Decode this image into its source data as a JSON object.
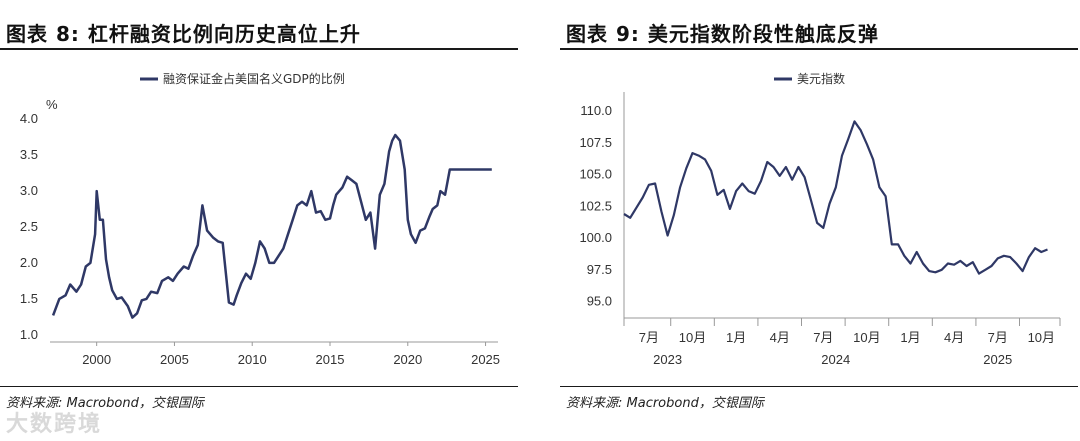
{
  "left": {
    "title": "图表 8: 杠杆融资比例向历史高位上升",
    "source": "资料来源: Macrobond，交银国际",
    "watermark": "大数跨境",
    "chart_data": {
      "type": "line",
      "title": "",
      "legend": [
        "融资保证金占美国名义GDP的比例"
      ],
      "ylabel": "%",
      "xlabel": "",
      "xlim": [
        1997,
        2025.8
      ],
      "ylim": [
        0.9,
        4.1
      ],
      "yticks": [
        "1.0",
        "1.5",
        "2.0",
        "2.5",
        "3.0",
        "3.5",
        "4.0"
      ],
      "xticks": [
        "2000",
        "2005",
        "2010",
        "2015",
        "2020",
        "2025"
      ],
      "color": "#2f3866",
      "series": [
        {
          "name": "融资保证金占美国名义GDP的比例",
          "x": [
            1997.2,
            1997.6,
            1998.0,
            1998.3,
            1998.7,
            1999.0,
            1999.3,
            1999.6,
            1999.9,
            2000.0,
            2000.2,
            2000.4,
            2000.6,
            2000.8,
            2001.0,
            2001.3,
            2001.6,
            2002.0,
            2002.3,
            2002.6,
            2002.9,
            2003.2,
            2003.5,
            2003.9,
            2004.2,
            2004.6,
            2004.9,
            2005.2,
            2005.6,
            2005.9,
            2006.2,
            2006.5,
            2006.8,
            2007.1,
            2007.3,
            2007.5,
            2007.8,
            2008.1,
            2008.5,
            2008.8,
            2009.0,
            2009.3,
            2009.6,
            2009.9,
            2010.2,
            2010.5,
            2010.8,
            2011.1,
            2011.4,
            2011.7,
            2012.0,
            2012.3,
            2012.6,
            2012.9,
            2013.2,
            2013.5,
            2013.8,
            2014.1,
            2014.4,
            2014.7,
            2015.0,
            2015.2,
            2015.4,
            2015.6,
            2015.8,
            2016.1,
            2016.4,
            2016.7,
            2017.0,
            2017.3,
            2017.6,
            2017.9,
            2018.2,
            2018.5,
            2018.8,
            2019.0,
            2019.2,
            2019.5,
            2019.8,
            2020.0,
            2020.2,
            2020.5,
            2020.8,
            2021.1,
            2021.4,
            2021.6,
            2021.9,
            2022.1,
            2022.4,
            2022.7,
            2022.9,
            2023.2,
            2023.5,
            2023.8,
            2024.1,
            2024.4,
            2024.7,
            2025.0,
            2025.2,
            2025.4
          ],
          "values": [
            1.27,
            1.5,
            1.55,
            1.7,
            1.6,
            1.7,
            1.95,
            2.0,
            2.4,
            3.0,
            2.6,
            2.6,
            2.05,
            1.8,
            1.62,
            1.5,
            1.52,
            1.4,
            1.24,
            1.3,
            1.48,
            1.5,
            1.6,
            1.58,
            1.75,
            1.8,
            1.75,
            1.85,
            1.95,
            1.92,
            2.1,
            2.25,
            2.8,
            2.45,
            2.4,
            2.35,
            2.3,
            2.28,
            1.45,
            1.42,
            1.55,
            1.72,
            1.85,
            1.78,
            2.0,
            2.3,
            2.2,
            2.0,
            2.0,
            2.1,
            2.2,
            2.4,
            2.6,
            2.8,
            2.85,
            2.8,
            3.0,
            2.7,
            2.72,
            2.6,
            2.62,
            2.8,
            2.95,
            3.0,
            3.05,
            3.2,
            3.15,
            3.1,
            2.85,
            2.6,
            2.7,
            2.2,
            2.95,
            3.1,
            3.55,
            3.7,
            3.78,
            3.7,
            3.3,
            2.6,
            2.4,
            2.28,
            2.45,
            2.48,
            2.65,
            2.75,
            2.8,
            3.0,
            2.95,
            3.3,
            3.3,
            3.3,
            3.3,
            3.3,
            3.3,
            3.3,
            3.3,
            3.3,
            3.3,
            3.3
          ]
        }
      ]
    }
  },
  "right": {
    "title": "图表 9: 美元指数阶段性触底反弹",
    "source": "资料来源: Macrobond，交银国际",
    "chart_data": {
      "type": "line",
      "title": "",
      "legend": [
        "美元指数"
      ],
      "xlabel": "",
      "ylabel": "",
      "xlim": [
        0,
        35
      ],
      "ylim": [
        93.7,
        111.2
      ],
      "yticks": [
        "95.0",
        "97.5",
        "100.0",
        "102.5",
        "105.0",
        "107.5",
        "110.0"
      ],
      "xticks_month": [
        "7月",
        "10月",
        "1月",
        "4月",
        "7月",
        "10月",
        "1月",
        "4月",
        "7月",
        "10月"
      ],
      "xticks_year": [
        "2023",
        "2024",
        "2025"
      ],
      "color": "#2f3866",
      "series": [
        {
          "name": "美元指数",
          "x": [
            0,
            0.5,
            1,
            1.5,
            2,
            2.5,
            3,
            3.5,
            4,
            4.5,
            5,
            5.5,
            6,
            6.5,
            7,
            7.5,
            8,
            8.5,
            9,
            9.5,
            10,
            10.5,
            11,
            11.5,
            12,
            12.5,
            13,
            13.5,
            14,
            14.5,
            15,
            15.5,
            16,
            16.5,
            17,
            17.5,
            18,
            18.5,
            19,
            19.5,
            20,
            20.5,
            21,
            21.5,
            22,
            22.5,
            23,
            23.5,
            24,
            24.5,
            25,
            25.5,
            26,
            26.5,
            27,
            27.5,
            28,
            28.5,
            29,
            29.5,
            30,
            30.5,
            31,
            31.5,
            32,
            32.5,
            33,
            33.5,
            34
          ],
          "values": [
            101.9,
            101.6,
            102.4,
            103.2,
            104.2,
            104.3,
            102.1,
            100.2,
            101.8,
            104.0,
            105.5,
            106.7,
            106.5,
            106.2,
            105.3,
            103.4,
            103.8,
            102.3,
            103.7,
            104.3,
            103.7,
            103.5,
            104.5,
            106.0,
            105.6,
            104.9,
            105.6,
            104.6,
            105.6,
            104.8,
            103.0,
            101.2,
            100.8,
            102.7,
            104.0,
            106.5,
            107.8,
            109.2,
            108.5,
            107.4,
            106.2,
            104.0,
            103.3,
            99.5,
            99.5,
            98.6,
            98.0,
            98.9,
            98.0,
            97.4,
            97.3,
            97.5,
            98.0,
            97.9,
            98.2,
            97.8,
            98.1,
            97.2,
            97.5,
            97.8,
            98.4,
            98.6,
            98.5,
            98.0,
            97.4,
            98.5,
            99.2,
            98.9,
            99.1
          ]
        }
      ]
    }
  }
}
